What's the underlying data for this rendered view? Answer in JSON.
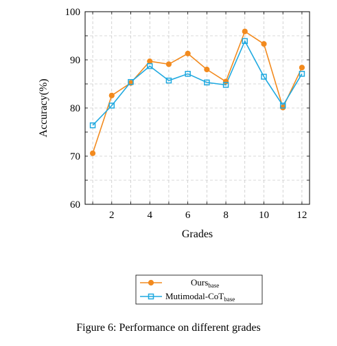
{
  "caption": "Figure 6: Performance on different grades",
  "chart_data": {
    "type": "line",
    "title": "",
    "xlabel": "Grades",
    "ylabel": "Accuracy(%)",
    "xlim": [
      0.6,
      12.4
    ],
    "ylim": [
      60,
      100
    ],
    "xticks": [
      2,
      4,
      6,
      8,
      10,
      12
    ],
    "yticks": [
      60,
      70,
      80,
      90,
      100
    ],
    "grid": true,
    "legend_position": "bottom-center",
    "x": [
      1,
      2,
      3,
      4,
      5,
      6,
      7,
      8,
      9,
      10,
      11,
      12
    ],
    "series": [
      {
        "name": "Ours",
        "name_subscript": "base",
        "color": "#f28a1e",
        "marker": "circle",
        "values": [
          70.6,
          82.6,
          85.2,
          89.7,
          89.1,
          91.3,
          88.0,
          85.5,
          95.9,
          93.3,
          80.1,
          88.4
        ]
      },
      {
        "name": "Mutimodal-CoT",
        "name_subscript": "base",
        "color": "#1fa9e0",
        "marker": "square",
        "values": [
          76.4,
          80.5,
          85.4,
          88.7,
          85.7,
          87.1,
          85.3,
          84.8,
          93.9,
          86.5,
          80.5,
          87.1
        ]
      }
    ]
  }
}
